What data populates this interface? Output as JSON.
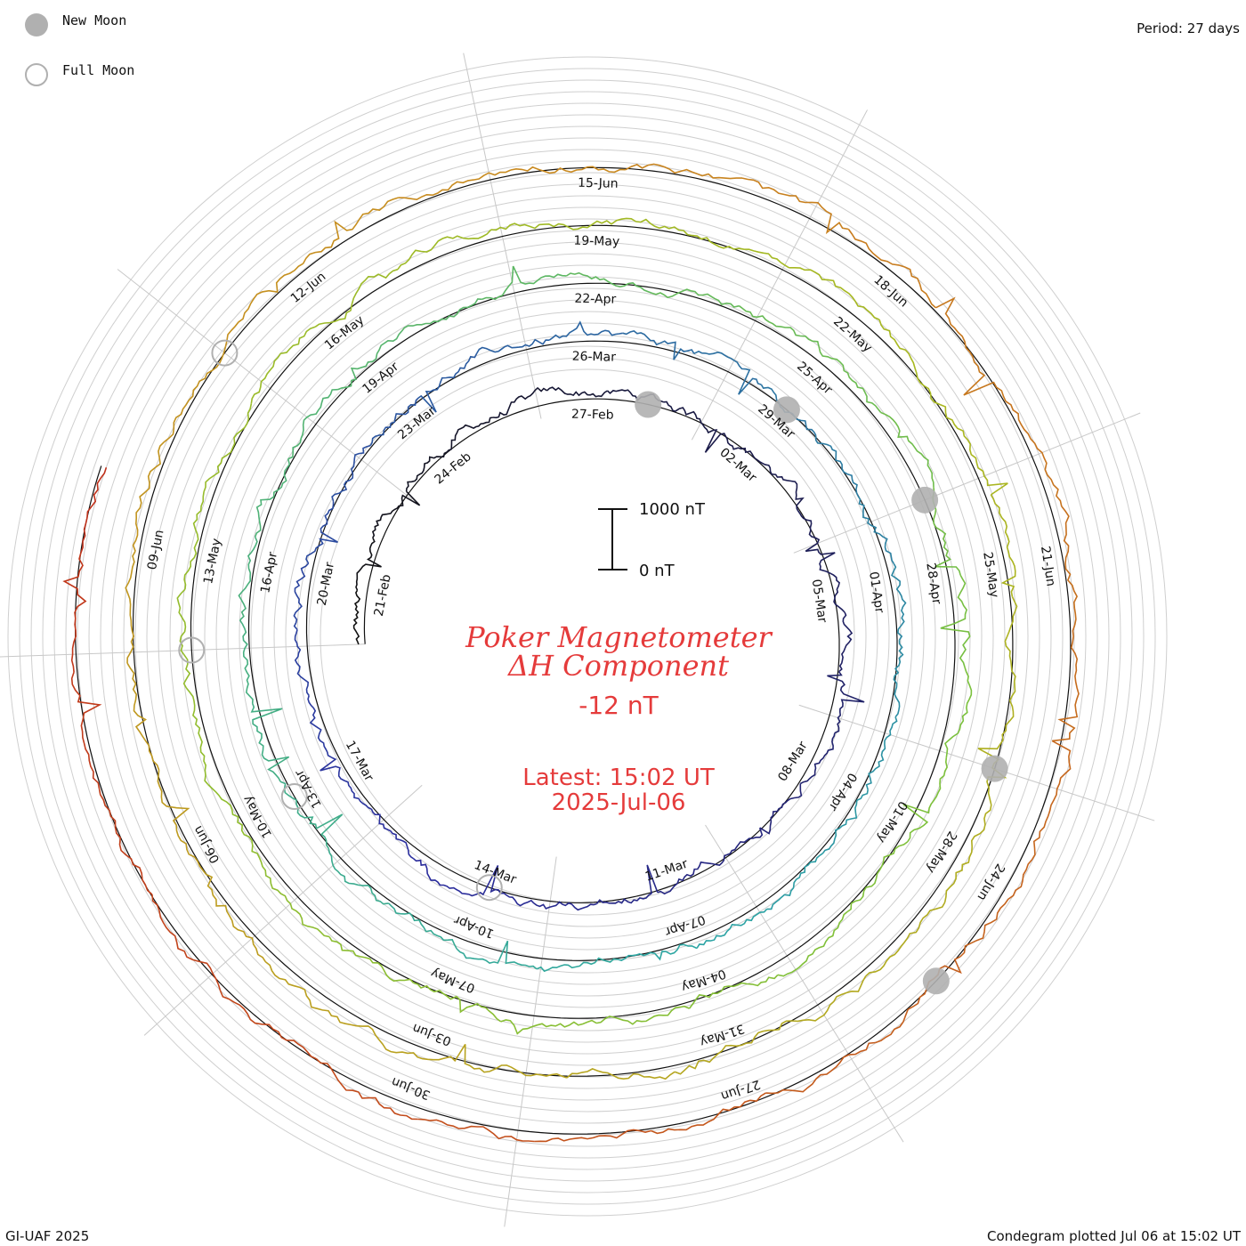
{
  "legend": {
    "new_moon_label": "New Moon",
    "full_moon_label": "Full Moon",
    "new_moon_color": "#b0b0b0",
    "full_moon_color": "#b0b0b0"
  },
  "period_label": "Period: 27 days",
  "footer_left": "GI-UAF 2025",
  "footer_right": "Condegram plotted Jul 06 at 15:02 UT",
  "title": {
    "line1": "Poker Magnetometer",
    "line2": "ΔH Component",
    "value": "-12 nT",
    "latest_line1": "Latest: 15:02 UT",
    "latest_line2": "2025-Jul-06",
    "color": "#e53b3b"
  },
  "scale_bar": {
    "top_label": "1000 nT",
    "bottom_label": "0 nT"
  },
  "chart_data": {
    "type": "condegram-spiral",
    "period_days": 27,
    "start": "2025-02-20",
    "end": "2025-07-06",
    "unit": "nT",
    "turns": [
      {
        "color": "#1a1a1a",
        "labels": [
          "21-Feb",
          "24-Feb",
          "27-Feb",
          "02-Mar",
          "05-Mar",
          "08-Mar",
          "11-Mar",
          "14-Mar",
          "17-Mar"
        ]
      },
      {
        "color": "#2b2d9e",
        "labels": [
          "20-Mar",
          "23-Mar",
          "26-Mar",
          "29-Mar",
          "01-Apr",
          "04-Apr",
          "07-Apr",
          "10-Apr",
          "13-Apr"
        ]
      },
      {
        "color": "#2ca6a4",
        "labels": [
          "16-Apr",
          "19-Apr",
          "22-Apr",
          "25-Apr",
          "28-Apr",
          "01-May",
          "04-May",
          "07-May",
          "10-May"
        ]
      },
      {
        "color": "#7cc13c",
        "labels": [
          "13-May",
          "16-May",
          "19-May",
          "22-May",
          "25-May",
          "28-May",
          "31-May",
          "03-Jun",
          "06-Jun"
        ]
      },
      {
        "color": "#c98a1f",
        "labels": [
          "09-Jun",
          "12-Jun",
          "15-Jun",
          "18-Jun",
          "21-Jun",
          "24-Jun",
          "27-Jun",
          "30-Jun"
        ]
      }
    ],
    "moon_phases": [
      {
        "type": "new",
        "date": "2025-02-28"
      },
      {
        "type": "full",
        "date": "2025-03-14"
      },
      {
        "type": "new",
        "date": "2025-03-29"
      },
      {
        "type": "full",
        "date": "2025-04-13"
      },
      {
        "type": "new",
        "date": "2025-04-27"
      },
      {
        "type": "full",
        "date": "2025-05-12"
      },
      {
        "type": "new",
        "date": "2025-05-27"
      },
      {
        "type": "full",
        "date": "2025-06-11"
      },
      {
        "type": "new",
        "date": "2025-06-25"
      }
    ]
  }
}
